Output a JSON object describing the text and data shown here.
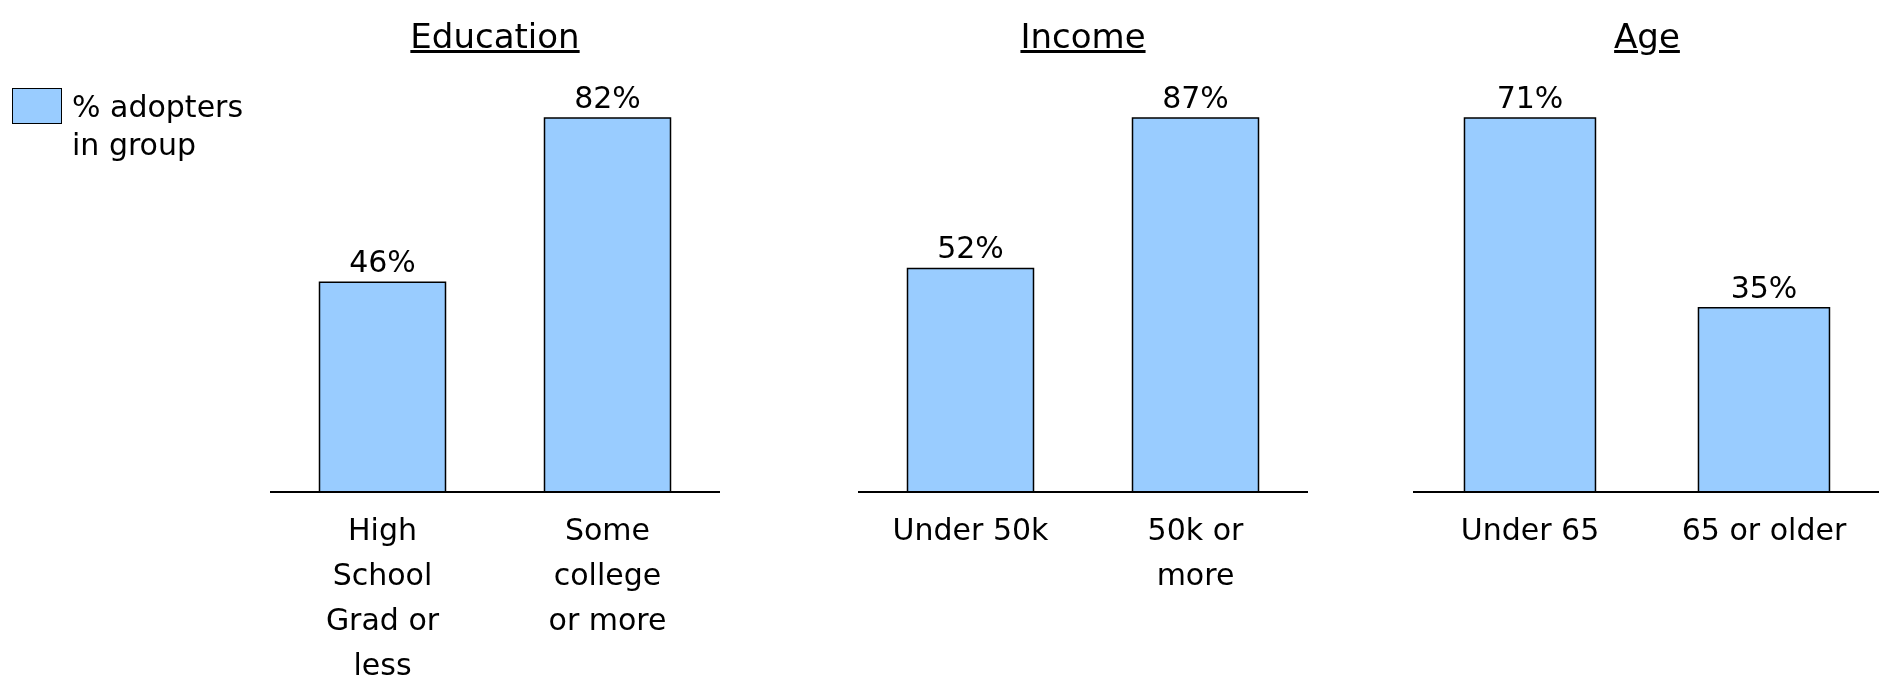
{
  "chart_data": [
    {
      "type": "bar",
      "title": "Education",
      "categories": [
        "High School Grad or less",
        "Some college or more"
      ],
      "series": [
        {
          "name": "% adopters in group",
          "color": "#99ccff",
          "values": [
            46,
            82
          ],
          "value_labels": [
            "46%",
            "82%"
          ]
        }
      ],
      "legend": "left"
    },
    {
      "type": "bar",
      "title": "Income",
      "categories": [
        "Under 50k",
        "50k or more"
      ],
      "series": [
        {
          "color": "#99ccff",
          "values": [
            52,
            87
          ],
          "value_labels": [
            "52%",
            "87%"
          ]
        }
      ]
    },
    {
      "type": "bar",
      "title": "Age",
      "categories": [
        "Under 65",
        "65 or older"
      ],
      "series": [
        {
          "color": "#99ccff",
          "values": [
            71,
            35
          ],
          "value_labels": [
            "71%",
            "35%"
          ]
        }
      ]
    }
  ]
}
